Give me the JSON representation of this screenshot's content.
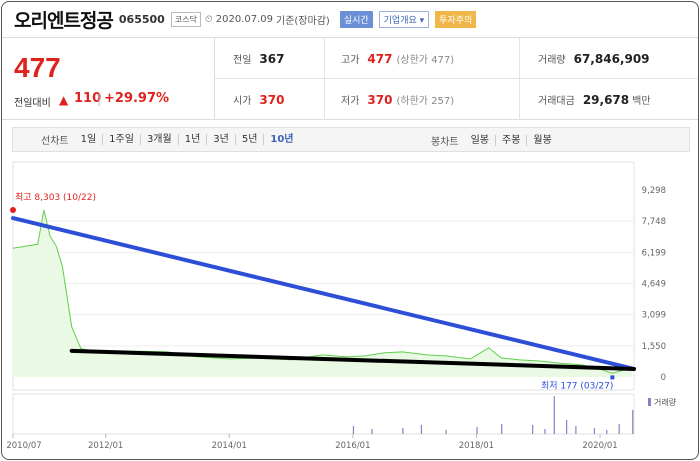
{
  "header": {
    "stock_name": "오리엔트정공",
    "stock_code": "065500",
    "market": "코스닥",
    "date": "2020.07.09",
    "date_basis": "기준(장마감)",
    "btn_realtime": "실시간",
    "btn_company": "기업개요 ▾",
    "btn_investor": "투자주의"
  },
  "price": {
    "current": "477",
    "prev_label": "전일대비",
    "change": "110",
    "change_rate": "+29.97%",
    "prev_close_label": "전일",
    "prev_close": "367",
    "high_label": "고가",
    "high": "477",
    "high_sub": "(상한가 477)",
    "volume_label": "거래량",
    "volume": "67,846,909",
    "open_label": "시가",
    "open": "370",
    "low_label": "저가",
    "low": "370",
    "low_sub": "(하한가 257)",
    "amount_label": "거래대금",
    "amount": "29,678",
    "amount_unit": "백만"
  },
  "toolbar": {
    "line_label": "선차트",
    "periods": [
      "1일",
      "1주일",
      "3개월",
      "1년",
      "3년",
      "5년",
      "10년"
    ],
    "active_period": "10년",
    "candle_label": "봉차트",
    "candle_periods": [
      "일봉",
      "주봉",
      "월봉"
    ]
  },
  "colors": {
    "up": "#e0221e",
    "price_line": "#5fcf4a",
    "trend_upper": "#2d4fd8",
    "trend_lower": "#000000",
    "volume_bar": "#8d7fc4"
  },
  "chart_data": {
    "type": "area",
    "y_ticks": [
      "9,298",
      "7,748",
      "6,199",
      "4,649",
      "3,099",
      "1,550",
      "0"
    ],
    "ylim": [
      0,
      9298
    ],
    "x_ticks": [
      "2010/07",
      "2012/01",
      "2014/01",
      "2016/01",
      "2018/01",
      "2020/01"
    ],
    "high_annotation": "최고 8,303 (10/22)",
    "low_annotation": "최저 177 (03/27)",
    "volume_label": "거래량",
    "series": [
      {
        "name": "종가",
        "x": [
          2010.5,
          2010.7,
          2010.9,
          2011.0,
          2011.1,
          2011.2,
          2011.3,
          2011.45,
          2011.6,
          2011.8,
          2012.3,
          2013.0,
          2013.5,
          2014.0,
          2014.5,
          2015.0,
          2015.5,
          2015.9,
          2016.2,
          2016.5,
          2016.8,
          2017.2,
          2017.5,
          2017.9,
          2018.2,
          2018.4,
          2018.7,
          2019.0,
          2019.3,
          2019.7,
          2020.0,
          2020.2,
          2020.52
        ],
        "values": [
          6400,
          6500,
          6600,
          8303,
          7000,
          6500,
          5500,
          2500,
          1400,
          1300,
          1300,
          1250,
          1000,
          900,
          950,
          850,
          1100,
          1000,
          1050,
          1200,
          1250,
          1100,
          1050,
          900,
          1450,
          950,
          850,
          800,
          700,
          600,
          400,
          177,
          477
        ]
      }
    ],
    "volume": [
      [
        2016.0,
        8
      ],
      [
        2016.3,
        5
      ],
      [
        2016.8,
        6
      ],
      [
        2017.1,
        9
      ],
      [
        2017.5,
        4
      ],
      [
        2018.0,
        7
      ],
      [
        2018.4,
        10
      ],
      [
        2018.9,
        9
      ],
      [
        2019.1,
        5
      ],
      [
        2019.25,
        38
      ],
      [
        2019.45,
        14
      ],
      [
        2019.6,
        8
      ],
      [
        2019.9,
        6
      ],
      [
        2020.1,
        4
      ],
      [
        2020.3,
        10
      ],
      [
        2020.52,
        24
      ]
    ],
    "trendlines": [
      {
        "name": "upper",
        "from": [
          2010.5,
          7900
        ],
        "to": [
          2020.55,
          400
        ]
      },
      {
        "name": "lower",
        "from": [
          2011.45,
          1300
        ],
        "to": [
          2020.55,
          400
        ]
      }
    ],
    "grid": true
  }
}
